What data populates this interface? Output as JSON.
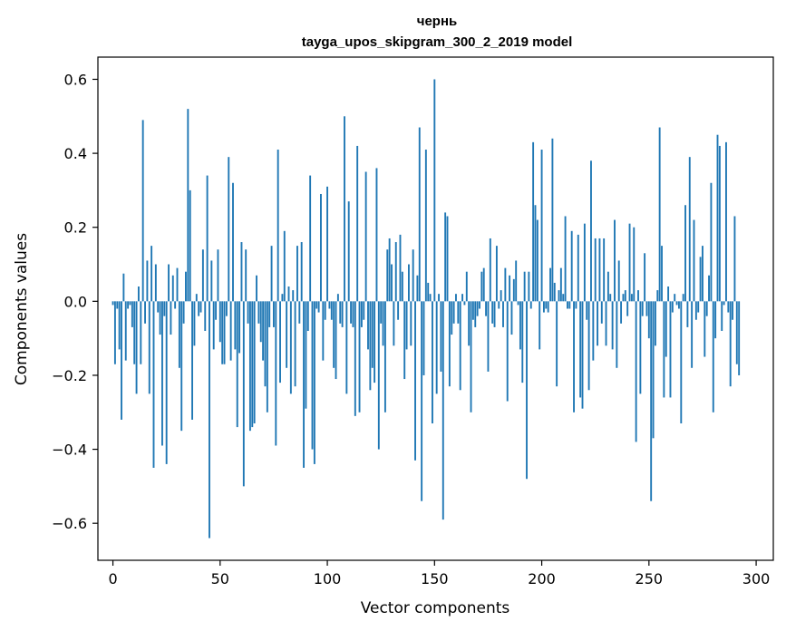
{
  "chart_data": {
    "type": "bar",
    "title_line1": "чернь",
    "title_line2": "tayga_upos_skipgram_300_2_2019 model",
    "xlabel": "Vector components",
    "ylabel": "Components values",
    "xlim": [
      -7,
      308
    ],
    "ylim": [
      -0.7,
      0.66
    ],
    "xticks": [
      0,
      50,
      100,
      150,
      200,
      250,
      300
    ],
    "yticks": [
      -0.6,
      -0.4,
      -0.2,
      0.0,
      0.2,
      0.4,
      0.6
    ],
    "ytick_labels": [
      "−0.6",
      "−0.4",
      "−0.2",
      "0.0",
      "0.2",
      "0.4",
      "0.6"
    ],
    "xtick_labels": [
      "0",
      "50",
      "100",
      "150",
      "200",
      "250",
      "300"
    ],
    "bar_color": "#1f77b4",
    "values": [
      -0.01,
      -0.17,
      -0.02,
      -0.13,
      -0.32,
      0.075,
      -0.16,
      -0.02,
      -0.01,
      -0.07,
      -0.17,
      -0.25,
      0.04,
      -0.17,
      0.49,
      -0.06,
      0.11,
      -0.25,
      0.15,
      -0.45,
      0.1,
      -0.03,
      -0.09,
      -0.39,
      -0.04,
      -0.44,
      0.1,
      -0.09,
      0.07,
      -0.02,
      0.09,
      -0.18,
      -0.35,
      -0.06,
      0.08,
      0.52,
      0.3,
      -0.32,
      -0.12,
      0.02,
      -0.04,
      -0.03,
      0.14,
      -0.08,
      0.34,
      -0.64,
      0.11,
      -0.13,
      -0.05,
      0.14,
      -0.11,
      -0.17,
      -0.17,
      -0.04,
      0.39,
      -0.16,
      0.32,
      -0.13,
      -0.34,
      -0.14,
      0.16,
      -0.5,
      0.14,
      -0.06,
      -0.35,
      -0.34,
      -0.33,
      0.07,
      -0.06,
      -0.11,
      -0.16,
      -0.23,
      -0.3,
      -0.07,
      0.15,
      -0.07,
      -0.39,
      0.41,
      -0.22,
      0.02,
      0.19,
      -0.18,
      0.04,
      -0.25,
      0.03,
      -0.23,
      0.15,
      -0.06,
      0.16,
      -0.45,
      -0.29,
      -0.08,
      0.34,
      -0.4,
      -0.44,
      -0.02,
      -0.03,
      0.29,
      -0.16,
      -0.05,
      0.31,
      -0.02,
      -0.05,
      -0.18,
      -0.21,
      0.02,
      -0.06,
      -0.07,
      0.5,
      -0.25,
      0.27,
      -0.06,
      -0.07,
      -0.31,
      0.42,
      -0.3,
      -0.07,
      -0.05,
      0.35,
      -0.13,
      -0.24,
      -0.18,
      -0.22,
      0.36,
      -0.4,
      -0.06,
      -0.12,
      -0.3,
      0.14,
      0.17,
      0.1,
      -0.12,
      0.16,
      -0.05,
      0.18,
      0.08,
      -0.21,
      -0.13,
      0.1,
      -0.12,
      0.14,
      -0.43,
      0.07,
      0.47,
      -0.54,
      -0.2,
      0.41,
      0.05,
      0.02,
      -0.33,
      0.6,
      -0.25,
      0.02,
      -0.19,
      -0.59,
      0.24,
      0.23,
      -0.23,
      -0.09,
      -0.06,
      0.02,
      -0.06,
      -0.24,
      0.02,
      -0.01,
      0.08,
      -0.12,
      -0.3,
      -0.05,
      -0.07,
      -0.04,
      -0.02,
      0.08,
      0.09,
      -0.04,
      -0.19,
      0.17,
      -0.06,
      -0.07,
      0.15,
      -0.02,
      0.03,
      -0.07,
      0.09,
      -0.27,
      0.07,
      -0.09,
      0.06,
      0.11,
      -0.01,
      -0.13,
      -0.22,
      0.08,
      -0.48,
      0.08,
      -0.02,
      0.43,
      0.26,
      0.22,
      -0.13,
      0.41,
      -0.03,
      -0.02,
      -0.03,
      0.09,
      0.44,
      0.05,
      -0.23,
      0.03,
      0.09,
      0.02,
      0.23,
      -0.02,
      -0.02,
      0.19,
      -0.3,
      -0.02,
      0.18,
      -0.26,
      -0.29,
      0.21,
      -0.05,
      -0.24,
      0.38,
      -0.16,
      0.17,
      -0.12,
      0.17,
      -0.06,
      0.17,
      -0.12,
      0.08,
      0.02,
      -0.13,
      0.22,
      -0.18,
      0.11,
      -0.06,
      0.02,
      0.03,
      -0.04,
      0.21,
      0.02,
      0.2,
      -0.38,
      0.03,
      -0.25,
      -0.04,
      0.13,
      -0.04,
      -0.1,
      -0.54,
      -0.37,
      -0.12,
      0.03,
      0.47,
      0.15,
      -0.26,
      -0.15,
      0.04,
      -0.26,
      -0.03,
      0.02,
      -0.01,
      -0.02,
      -0.33,
      0.02,
      0.26,
      -0.07,
      0.39,
      -0.18,
      0.22,
      -0.05,
      -0.03,
      0.12,
      0.15,
      -0.15,
      -0.04,
      0.07,
      0.32,
      -0.3,
      -0.1,
      0.45,
      0.42,
      -0.08,
      -0.01,
      0.43,
      -0.03,
      -0.23,
      -0.05,
      0.23,
      -0.17,
      -0.2
    ]
  }
}
